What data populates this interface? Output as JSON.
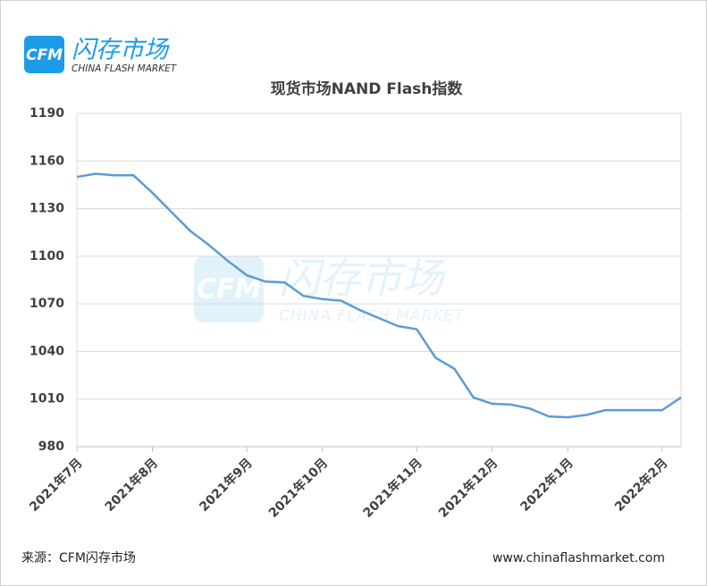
{
  "logo": {
    "badge": "CFM",
    "name": "闪存市场",
    "subtitle": "CHINA FLASH MARKET"
  },
  "chart_data": {
    "type": "line",
    "title": "现货市场NAND Flash指数",
    "categories": [
      "2021年7月",
      null,
      null,
      null,
      "2021年8月",
      null,
      null,
      null,
      null,
      "2021年9月",
      null,
      null,
      null,
      "2021年10月",
      null,
      null,
      null,
      null,
      "2021年11月",
      null,
      null,
      null,
      "2021年12月",
      null,
      null,
      null,
      "2022年1月",
      null,
      null,
      null,
      null,
      "2022年2月",
      null
    ],
    "series": [
      {
        "name": "现货市场NAND Flash指数",
        "color": "#5b9bd5",
        "values": [
          1150,
          1152,
          1151,
          1151,
          1140,
          1128,
          1116,
          1107,
          1097,
          1088,
          1084,
          1083.5,
          1075,
          1073,
          1072,
          1066,
          1061,
          1056,
          1054,
          1036,
          1029,
          1011,
          1007,
          1006.5,
          1004,
          999,
          998.5,
          1000,
          1003,
          1003,
          1003,
          1003,
          1011
        ]
      }
    ],
    "ylim": [
      980,
      1190
    ],
    "yticks": [
      980,
      1010,
      1040,
      1070,
      1100,
      1130,
      1160,
      1190
    ],
    "grid": true
  },
  "footer": {
    "source": "来源：CFM闪存市场",
    "url": "www.chinaflashmarket.com"
  }
}
